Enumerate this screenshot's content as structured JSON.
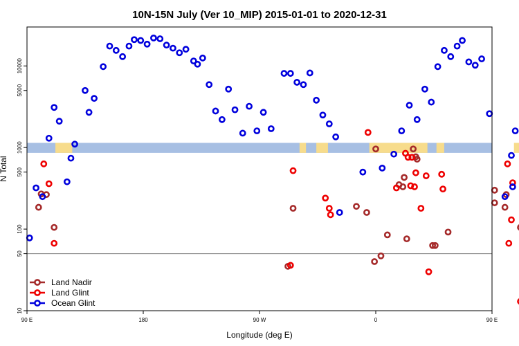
{
  "chart_data": {
    "type": "scatter",
    "title": "10N-15N July (Ver 10_MIP)   2015-01-01 to 2020-12-31",
    "xlabel": "Longitude (deg E)",
    "ylabel": "N Total",
    "xlim": [
      90,
      450
    ],
    "ylim": [
      10,
      30000
    ],
    "yscale": "log",
    "xticks": [
      {
        "value": 90,
        "label": "90 E"
      },
      {
        "value": 180,
        "label": "180"
      },
      {
        "value": 270,
        "label": "90 W"
      },
      {
        "value": 360,
        "label": "0"
      },
      {
        "value": 450,
        "label": "90 E"
      },
      {
        "value": 540,
        "label": "180"
      }
    ],
    "yticks": [
      10,
      50,
      100,
      500,
      1000,
      5000,
      10000
    ],
    "reference_line": 50,
    "land_band": {
      "y_min": 860,
      "y_max": 1140,
      "ocean_color": "#a7bfe3",
      "land_color": "#f7dc8c"
    },
    "land_segments": [
      [
        112,
        125
      ],
      [
        301,
        306
      ],
      [
        314,
        323
      ],
      [
        355,
        400
      ],
      [
        407,
        413
      ],
      [
        467,
        472
      ],
      [
        478,
        482
      ]
    ],
    "legend": {
      "position": "bottom-left",
      "entries": [
        "Land Nadir",
        "Land Glint",
        "Ocean Glint"
      ]
    },
    "series": [
      {
        "name": "Land Nadir",
        "color": "#a52a2a",
        "points": [
          [
            99,
            185
          ],
          [
            101,
            270
          ],
          [
            105,
            265
          ],
          [
            111,
            105
          ],
          [
            292,
            35
          ],
          [
            296,
            180
          ],
          [
            360,
            960
          ],
          [
            359,
            40
          ],
          [
            364,
            47
          ],
          [
            369,
            85
          ],
          [
            345,
            190
          ],
          [
            353,
            160
          ],
          [
            382,
            430
          ],
          [
            381,
            330
          ],
          [
            378,
            350
          ],
          [
            384,
            76
          ],
          [
            389,
            960
          ],
          [
            392,
            720
          ],
          [
            391,
            770
          ],
          [
            404,
            63
          ],
          [
            406,
            63
          ],
          [
            416,
            92
          ],
          [
            452,
            300
          ],
          [
            452,
            210
          ],
          [
            461,
            265
          ],
          [
            460,
            185
          ],
          [
            472,
            105
          ]
        ]
      },
      {
        "name": "Land Glint",
        "color": "#ee0000",
        "points": [
          [
            103,
            630
          ],
          [
            107,
            360
          ],
          [
            111,
            67
          ],
          [
            294,
            36
          ],
          [
            296,
            520
          ],
          [
            321,
            240
          ],
          [
            325,
            150
          ],
          [
            324,
            180
          ],
          [
            354,
            1530
          ],
          [
            376,
            320
          ],
          [
            383,
            850
          ],
          [
            385,
            760
          ],
          [
            387,
            340
          ],
          [
            388,
            760
          ],
          [
            390,
            330
          ],
          [
            391,
            490
          ],
          [
            395,
            180
          ],
          [
            399,
            450
          ],
          [
            401,
            30
          ],
          [
            411,
            470
          ],
          [
            412,
            310
          ],
          [
            462,
            630
          ],
          [
            466,
            370
          ],
          [
            463,
            67
          ],
          [
            472,
            13
          ],
          [
            465,
            130
          ]
        ]
      },
      {
        "name": "Ocean Glint",
        "color": "#0000dd",
        "points": [
          [
            92,
            78
          ],
          [
            97,
            320
          ],
          [
            102,
            250
          ],
          [
            107,
            1300
          ],
          [
            111,
            3100
          ],
          [
            115,
            2100
          ],
          [
            121,
            380
          ],
          [
            124,
            740
          ],
          [
            127,
            1100
          ],
          [
            135,
            5000
          ],
          [
            138,
            2700
          ],
          [
            142,
            4000
          ],
          [
            149,
            9800
          ],
          [
            154,
            17500
          ],
          [
            159,
            15500
          ],
          [
            164,
            13000
          ],
          [
            169,
            17500
          ],
          [
            173,
            21000
          ],
          [
            178,
            20500
          ],
          [
            183,
            18500
          ],
          [
            188,
            22000
          ],
          [
            193,
            21500
          ],
          [
            198,
            18000
          ],
          [
            203,
            16500
          ],
          [
            208,
            14500
          ],
          [
            213,
            16000
          ],
          [
            219,
            11500
          ],
          [
            222,
            10500
          ],
          [
            226,
            12500
          ],
          [
            231,
            5900
          ],
          [
            236,
            2800
          ],
          [
            241,
            2200
          ],
          [
            246,
            5200
          ],
          [
            251,
            2900
          ],
          [
            257,
            1500
          ],
          [
            262,
            3200
          ],
          [
            268,
            1600
          ],
          [
            273,
            2700
          ],
          [
            279,
            1700
          ],
          [
            289,
            8100
          ],
          [
            294,
            8100
          ],
          [
            299,
            6300
          ],
          [
            304,
            5900
          ],
          [
            309,
            8200
          ],
          [
            314,
            3800
          ],
          [
            319,
            2500
          ],
          [
            324,
            1950
          ],
          [
            329,
            1350
          ],
          [
            332,
            160
          ],
          [
            350,
            500
          ],
          [
            365,
            560
          ],
          [
            374,
            830
          ],
          [
            380,
            1600
          ],
          [
            386,
            3300
          ],
          [
            392,
            2200
          ],
          [
            398,
            5200
          ],
          [
            403,
            3600
          ],
          [
            408,
            9800
          ],
          [
            413,
            15500
          ],
          [
            418,
            13000
          ],
          [
            423,
            17500
          ],
          [
            427,
            20500
          ],
          [
            432,
            11200
          ],
          [
            437,
            10200
          ],
          [
            442,
            12200
          ],
          [
            448,
            2600
          ],
          [
            460,
            250
          ],
          [
            465,
            800
          ],
          [
            466,
            330
          ],
          [
            468,
            1600
          ],
          [
            476,
            4000
          ],
          [
            481,
            1950
          ],
          [
            485,
            1250
          ],
          [
            490,
            740
          ]
        ]
      }
    ]
  }
}
